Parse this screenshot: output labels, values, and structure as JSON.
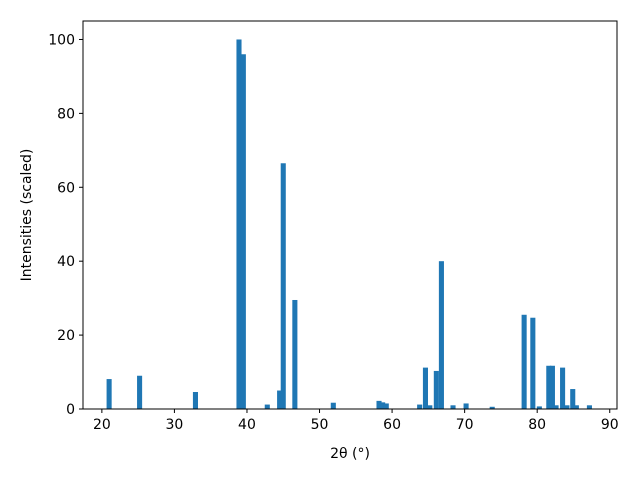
{
  "chart_data": {
    "type": "bar",
    "xlabel": "2θ (°)",
    "ylabel": "Intensities (scaled)",
    "x": [
      21.0,
      25.2,
      32.9,
      38.9,
      39.5,
      42.8,
      44.5,
      45.0,
      46.6,
      51.9,
      58.2,
      58.7,
      59.2,
      63.8,
      64.6,
      65.2,
      66.1,
      66.8,
      68.4,
      70.2,
      73.8,
      78.2,
      79.4,
      80.3,
      81.6,
      82.1,
      82.6,
      83.5,
      84.1,
      84.9,
      85.4,
      87.2
    ],
    "values": [
      8.1,
      9.0,
      4.6,
      100,
      96,
      1.2,
      5.0,
      66.5,
      29.5,
      1.7,
      2.2,
      1.8,
      1.5,
      1.2,
      11.2,
      1.0,
      10.3,
      40,
      1.0,
      1.5,
      0.6,
      25.5,
      24.7,
      0.7,
      11.7,
      11.7,
      1.0,
      11.2,
      1.0,
      5.4,
      1.0,
      1.0
    ],
    "color": "#1f77b4",
    "xlim": [
      17.4,
      91.0
    ],
    "xticks": [
      20,
      30,
      40,
      50,
      60,
      70,
      80,
      90
    ],
    "ylim": [
      0,
      105
    ],
    "yticks": [
      0,
      20,
      40,
      60,
      80,
      100
    ]
  }
}
